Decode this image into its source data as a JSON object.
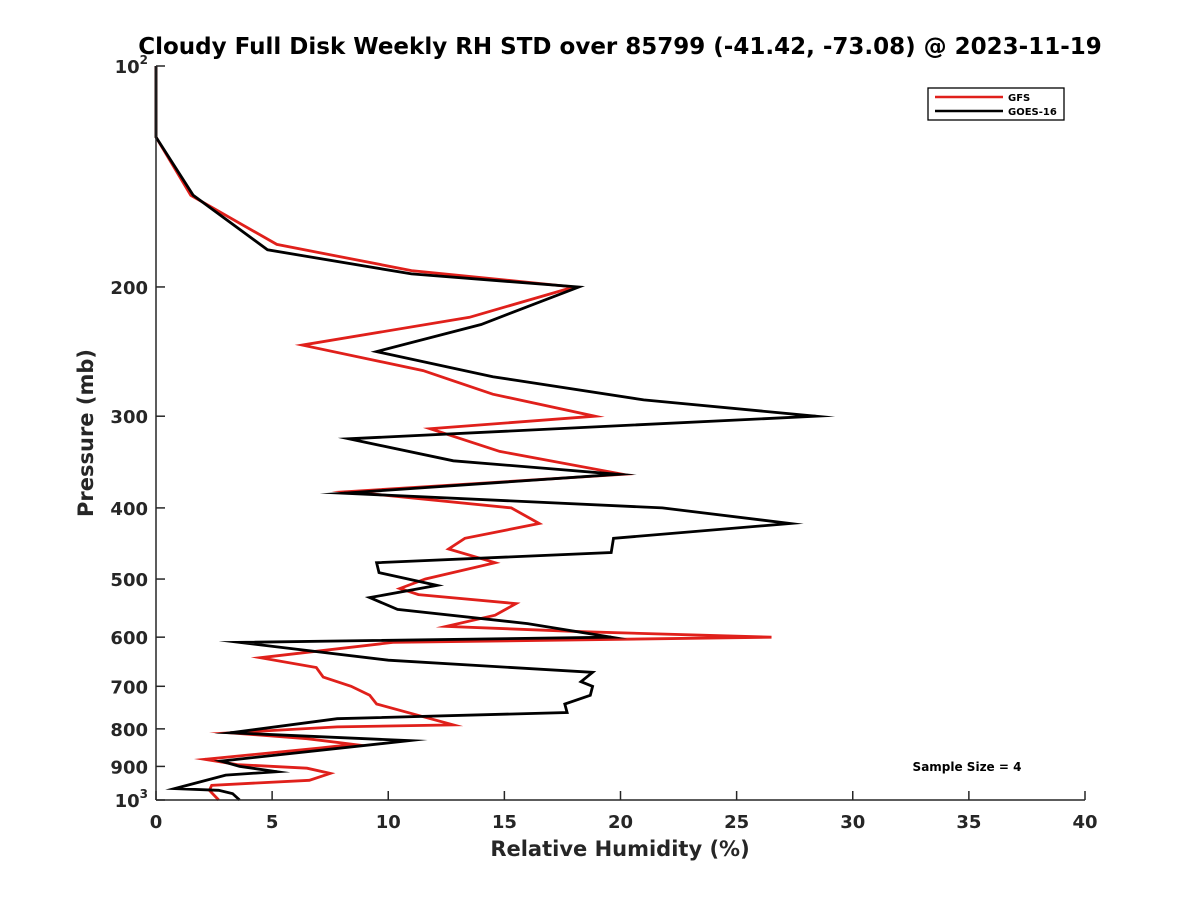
{
  "chart_data": {
    "type": "line",
    "title": "Cloudy Full Disk Weekly RH STD over 85799 (-41.42, -73.08) @ 2023-11-19",
    "xlabel": "Relative Humidity (%)",
    "ylabel": "Pressure (mb)",
    "xlim": [
      0,
      40
    ],
    "ylim": [
      100,
      1000
    ],
    "y_scale": "log",
    "y_reversed": true,
    "x_ticks": [
      "0",
      "5",
      "10",
      "15",
      "20",
      "25",
      "30",
      "35",
      "40"
    ],
    "y_ticks": [
      {
        "value": 100,
        "base": "10",
        "exp": "2"
      },
      {
        "value": 200,
        "label": "200"
      },
      {
        "value": 300,
        "label": "300"
      },
      {
        "value": 400,
        "label": "400"
      },
      {
        "value": 500,
        "label": "500"
      },
      {
        "value": 600,
        "label": "600"
      },
      {
        "value": 700,
        "label": "700"
      },
      {
        "value": 800,
        "label": "800"
      },
      {
        "value": 900,
        "label": "900"
      },
      {
        "value": 1000,
        "base": "10",
        "exp": "3"
      }
    ],
    "legend": {
      "position": "top-right"
    },
    "annotation": "Sample Size = 4",
    "series": [
      {
        "name": "GFS",
        "color": "#e0201b",
        "points": [
          [
            0.0,
            100
          ],
          [
            0.0,
            125
          ],
          [
            1.5,
            150
          ],
          [
            5.2,
            175
          ],
          [
            11.0,
            190
          ],
          [
            18.0,
            200
          ],
          [
            13.5,
            220
          ],
          [
            6.3,
            240
          ],
          [
            11.5,
            260
          ],
          [
            14.5,
            280
          ],
          [
            18.9,
            300
          ],
          [
            11.8,
            312
          ],
          [
            14.8,
            335
          ],
          [
            20.1,
            360
          ],
          [
            8.3,
            380
          ],
          [
            15.3,
            400
          ],
          [
            16.5,
            420
          ],
          [
            13.3,
            440
          ],
          [
            12.6,
            455
          ],
          [
            14.6,
            475
          ],
          [
            11.6,
            500
          ],
          [
            10.5,
            515
          ],
          [
            11.3,
            525
          ],
          [
            15.5,
            540
          ],
          [
            14.6,
            560
          ],
          [
            12.5,
            580
          ],
          [
            18.5,
            590
          ],
          [
            26.5,
            600
          ],
          [
            10.2,
            610
          ],
          [
            4.5,
            640
          ],
          [
            6.9,
            660
          ],
          [
            7.2,
            680
          ],
          [
            8.4,
            700
          ],
          [
            9.2,
            720
          ],
          [
            9.5,
            740
          ],
          [
            11.5,
            770
          ],
          [
            12.8,
            790
          ],
          [
            7.8,
            795
          ],
          [
            3.2,
            810
          ],
          [
            6.5,
            825
          ],
          [
            8.5,
            840
          ],
          [
            7.0,
            850
          ],
          [
            2.1,
            880
          ],
          [
            3.5,
            895
          ],
          [
            6.5,
            905
          ],
          [
            7.5,
            920
          ],
          [
            6.6,
            940
          ],
          [
            2.4,
            955
          ],
          [
            2.3,
            970
          ],
          [
            2.7,
            1000
          ]
        ]
      },
      {
        "name": "GOES-16",
        "color": "#000000",
        "points": [
          [
            0.0,
            100
          ],
          [
            0.0,
            125
          ],
          [
            1.6,
            150
          ],
          [
            4.8,
            178
          ],
          [
            11.0,
            192
          ],
          [
            18.2,
            200
          ],
          [
            14.0,
            225
          ],
          [
            9.5,
            245
          ],
          [
            14.5,
            265
          ],
          [
            21.0,
            285
          ],
          [
            28.4,
            300
          ],
          [
            8.3,
            322
          ],
          [
            12.8,
            345
          ],
          [
            19.9,
            360
          ],
          [
            8.1,
            382
          ],
          [
            21.8,
            400
          ],
          [
            27.3,
            420
          ],
          [
            19.7,
            440
          ],
          [
            19.6,
            460
          ],
          [
            9.5,
            475
          ],
          [
            9.6,
            490
          ],
          [
            12.1,
            510
          ],
          [
            9.2,
            530
          ],
          [
            10.4,
            550
          ],
          [
            16.0,
            575
          ],
          [
            19.6,
            600
          ],
          [
            3.6,
            610
          ],
          [
            10.0,
            645
          ],
          [
            18.8,
            670
          ],
          [
            18.3,
            690
          ],
          [
            18.8,
            700
          ],
          [
            18.7,
            720
          ],
          [
            17.6,
            740
          ],
          [
            17.7,
            760
          ],
          [
            7.8,
            775
          ],
          [
            3.2,
            810
          ],
          [
            10.9,
            830
          ],
          [
            2.8,
            885
          ],
          [
            3.6,
            900
          ],
          [
            5.2,
            915
          ],
          [
            3.0,
            925
          ],
          [
            0.8,
            965
          ],
          [
            2.7,
            970
          ],
          [
            3.3,
            980
          ],
          [
            3.6,
            1000
          ]
        ]
      }
    ]
  }
}
